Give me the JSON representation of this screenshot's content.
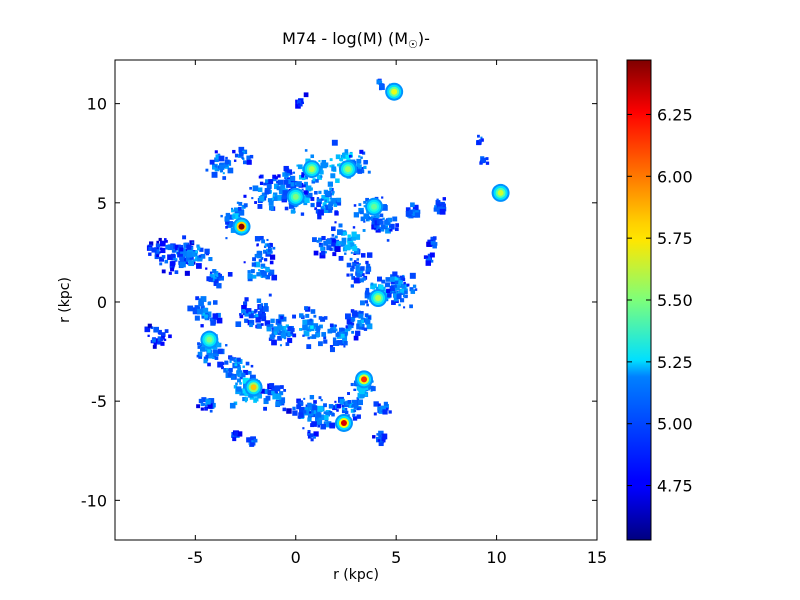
{
  "chart_data": {
    "type": "heatmap",
    "title": "M74 - log(M) (M",
    "title_sun": "☉",
    "title_suffix": ")-",
    "xlabel": "r (kpc)",
    "ylabel": "r (kpc)",
    "xlim": [
      -9,
      15
    ],
    "ylim": [
      -12,
      12.2
    ],
    "x_ticks": [
      -5,
      0,
      5,
      10,
      15
    ],
    "x_tick_labels": [
      "-5",
      "0",
      "5",
      "10",
      "15"
    ],
    "y_ticks": [
      -10,
      -5,
      0,
      5,
      10
    ],
    "y_tick_labels": [
      "-10",
      "-5",
      "0",
      "5",
      "10"
    ],
    "colorbar": {
      "min": 4.53,
      "max": 6.47,
      "ticks": [
        4.75,
        5.0,
        5.25,
        5.5,
        5.75,
        6.0,
        6.25
      ],
      "tick_labels": [
        "4.75",
        "5.00",
        "5.25",
        "5.50",
        "5.75",
        "6.00",
        "6.25"
      ],
      "colormap": "jet"
    },
    "grid": false,
    "peaks": [
      {
        "x": -2.7,
        "y": 3.8,
        "value": 6.45
      },
      {
        "x": 2.4,
        "y": -6.1,
        "value": 6.3
      },
      {
        "x": 3.4,
        "y": -3.9,
        "value": 6.15
      },
      {
        "x": -2.1,
        "y": -4.3,
        "value": 5.85
      },
      {
        "x": 4.9,
        "y": 10.6,
        "value": 5.7
      },
      {
        "x": 10.2,
        "y": 5.5,
        "value": 5.65
      },
      {
        "x": 0.8,
        "y": 6.7,
        "value": 5.6
      },
      {
        "x": 4.1,
        "y": 0.2,
        "value": 5.6
      },
      {
        "x": 2.6,
        "y": 6.7,
        "value": 5.55
      },
      {
        "x": 0.0,
        "y": 5.3,
        "value": 5.5
      },
      {
        "x": -4.3,
        "y": -1.9,
        "value": 5.5
      },
      {
        "x": 3.9,
        "y": 4.8,
        "value": 5.45
      }
    ]
  }
}
